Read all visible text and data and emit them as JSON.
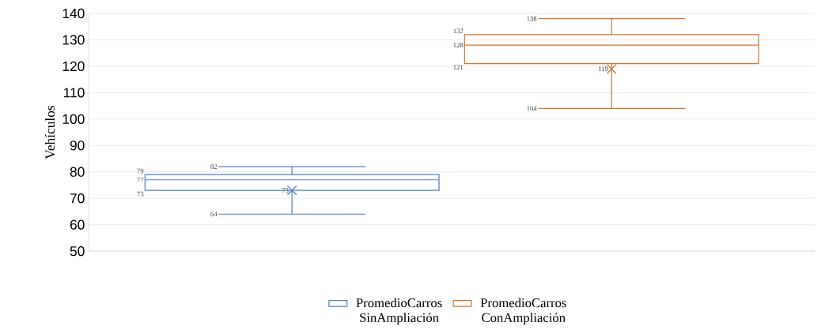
{
  "chart_data": {
    "type": "box",
    "ylabel": "Vehículos",
    "categories": [
      null
    ],
    "ylim": [
      50,
      140
    ],
    "yticks": [
      50,
      60,
      70,
      80,
      90,
      100,
      110,
      120,
      130,
      140
    ],
    "grid": "y",
    "legend": "bottom",
    "marker": "cross",
    "data_labels": true,
    "series": [
      {
        "name": "PromedioCarros SinAmpliación",
        "color": "#4f81bd",
        "boxes": [
          {
            "low": 64,
            "q1": 73,
            "median": 77,
            "q3": 79,
            "high": 82,
            "mean": 73
          }
        ]
      },
      {
        "name": "PromedioCarros ConAmpliación",
        "color": "#d0752f",
        "boxes": [
          {
            "low": 104,
            "q1": 121,
            "median": 128,
            "q3": 132,
            "high": 138,
            "mean": 119
          }
        ]
      }
    ],
    "annotations": [
      "64",
      "82",
      "73",
      "77",
      "79",
      "73",
      "104",
      "138",
      "121",
      "128",
      "132",
      "119"
    ]
  }
}
